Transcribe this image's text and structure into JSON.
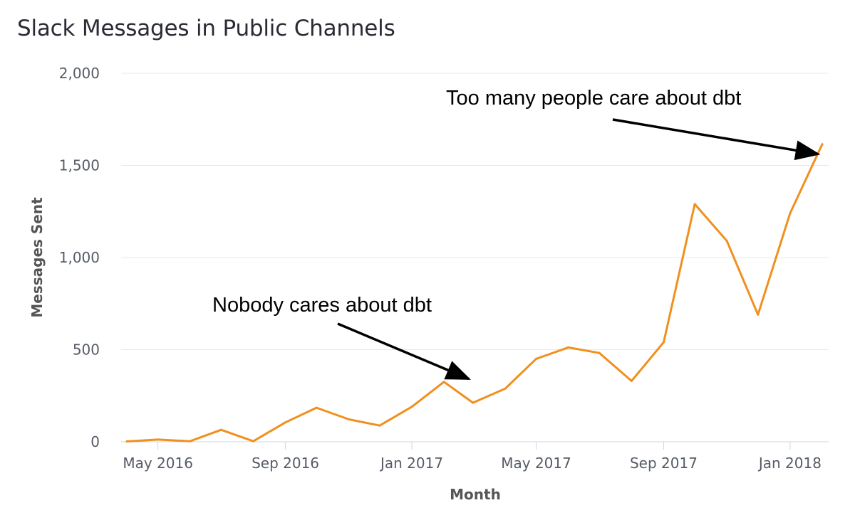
{
  "chart_data": {
    "type": "line",
    "title": "Slack Messages in Public Channels",
    "xlabel": "Month",
    "ylabel": "Messages Sent",
    "ylim": [
      0,
      2000
    ],
    "yticks": [
      0,
      500,
      1000,
      1500,
      2000
    ],
    "ytick_labels": [
      "0",
      "500",
      "1,000",
      "1,500",
      "2,000"
    ],
    "xticks": [
      "2016-05",
      "2016-09",
      "2017-01",
      "2017-05",
      "2017-09",
      "2018-01"
    ],
    "xtick_labels": [
      "May 2016",
      "Sep 2016",
      "Jan 2017",
      "May 2017",
      "Sep 2017",
      "Jan 2018"
    ],
    "grid": true,
    "line_color": "#f0901e",
    "x": [
      "2016-04-01",
      "2016-05-01",
      "2016-06-01",
      "2016-07-01",
      "2016-08-01",
      "2016-09-01",
      "2016-10-01",
      "2016-11-01",
      "2016-12-01",
      "2017-01-01",
      "2017-02-01",
      "2017-03-01",
      "2017-04-01",
      "2017-05-01",
      "2017-06-01",
      "2017-07-01",
      "2017-08-01",
      "2017-09-01",
      "2017-10-01",
      "2017-11-01",
      "2017-12-01",
      "2018-01-01",
      "2018-02-01"
    ],
    "series": [
      {
        "values": [
          2,
          12,
          3,
          65,
          3,
          105,
          185,
          122,
          88,
          190,
          325,
          212,
          288,
          450,
          512,
          482,
          330,
          540,
          1290,
          1090,
          690,
          1240,
          1615
        ]
      }
    ],
    "annotations": [
      {
        "text": "Nobody cares about dbt",
        "arrow_to": {
          "x": "2017-03-01",
          "y": 330
        }
      },
      {
        "text": "Too many people care about dbt",
        "arrow_to": {
          "x": "2018-02-01",
          "y": 1550
        }
      }
    ]
  }
}
